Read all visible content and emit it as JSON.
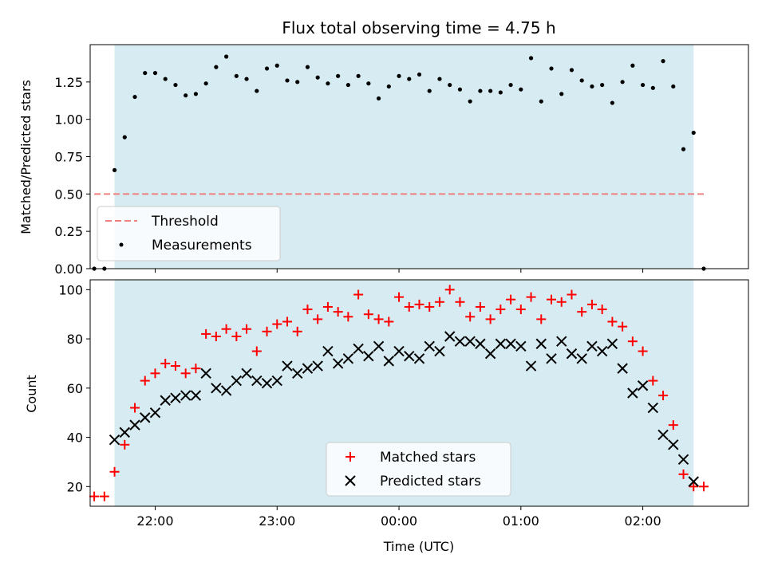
{
  "chart_data": [
    {
      "type": "scatter",
      "title": "Flux total observing time = 4.75 h",
      "xlabel": "",
      "ylabel": "Matched/Predicted stars",
      "xlim": [
        "21:28",
        "02:52"
      ],
      "ylim": [
        0,
        1.5
      ],
      "x_ticks": [
        "22:00",
        "23:00",
        "00:00",
        "01:00",
        "02:00"
      ],
      "y_ticks": [
        "0.00",
        "0.25",
        "0.50",
        "0.75",
        "1.00",
        "1.25"
      ],
      "observing_window": [
        "21:40",
        "02:25"
      ],
      "legend": {
        "position": "lower-left",
        "entries": [
          "Threshold",
          "Measurements"
        ]
      },
      "threshold": {
        "name": "Threshold",
        "value": 0.5,
        "x_range": [
          "21:30",
          "02:30"
        ],
        "color": "#f08080"
      },
      "series": [
        {
          "name": "Measurements",
          "color": "#000000",
          "points": [
            [
              "21:30",
              0.0
            ],
            [
              "21:35",
              0.0
            ],
            [
              "21:40",
              0.66
            ],
            [
              "21:45",
              0.88
            ],
            [
              "21:50",
              1.15
            ],
            [
              "21:55",
              1.31
            ],
            [
              "22:00",
              1.31
            ],
            [
              "22:05",
              1.27
            ],
            [
              "22:10",
              1.23
            ],
            [
              "22:15",
              1.16
            ],
            [
              "22:20",
              1.17
            ],
            [
              "22:25",
              1.24
            ],
            [
              "22:30",
              1.35
            ],
            [
              "22:35",
              1.42
            ],
            [
              "22:40",
              1.29
            ],
            [
              "22:45",
              1.27
            ],
            [
              "22:50",
              1.19
            ],
            [
              "22:55",
              1.34
            ],
            [
              "23:00",
              1.36
            ],
            [
              "23:05",
              1.26
            ],
            [
              "23:10",
              1.25
            ],
            [
              "23:15",
              1.35
            ],
            [
              "23:20",
              1.28
            ],
            [
              "23:25",
              1.24
            ],
            [
              "23:30",
              1.29
            ],
            [
              "23:35",
              1.23
            ],
            [
              "23:40",
              1.29
            ],
            [
              "23:45",
              1.24
            ],
            [
              "23:50",
              1.14
            ],
            [
              "23:55",
              1.22
            ],
            [
              "00:00",
              1.29
            ],
            [
              "00:05",
              1.27
            ],
            [
              "00:10",
              1.3
            ],
            [
              "00:15",
              1.19
            ],
            [
              "00:20",
              1.27
            ],
            [
              "00:25",
              1.23
            ],
            [
              "00:30",
              1.2
            ],
            [
              "00:35",
              1.12
            ],
            [
              "00:40",
              1.19
            ],
            [
              "00:45",
              1.19
            ],
            [
              "00:50",
              1.18
            ],
            [
              "00:55",
              1.23
            ],
            [
              "01:00",
              1.2
            ],
            [
              "01:05",
              1.41
            ],
            [
              "01:10",
              1.12
            ],
            [
              "01:15",
              1.34
            ],
            [
              "01:20",
              1.17
            ],
            [
              "01:25",
              1.33
            ],
            [
              "01:30",
              1.26
            ],
            [
              "01:35",
              1.22
            ],
            [
              "01:40",
              1.23
            ],
            [
              "01:45",
              1.11
            ],
            [
              "01:50",
              1.25
            ],
            [
              "01:55",
              1.36
            ],
            [
              "02:00",
              1.23
            ],
            [
              "02:05",
              1.21
            ],
            [
              "02:10",
              1.39
            ],
            [
              "02:15",
              1.22
            ],
            [
              "02:20",
              0.8
            ],
            [
              "02:25",
              0.91
            ],
            [
              "02:30",
              0.0
            ]
          ]
        }
      ]
    },
    {
      "type": "scatter",
      "title": "",
      "xlabel": "Time (UTC)",
      "ylabel": "Count",
      "xlim": [
        "21:28",
        "02:52"
      ],
      "ylim": [
        12,
        104
      ],
      "x_ticks": [
        "22:00",
        "23:00",
        "00:00",
        "01:00",
        "02:00"
      ],
      "y_ticks": [
        "20",
        "40",
        "60",
        "80",
        "100"
      ],
      "observing_window": [
        "21:40",
        "02:25"
      ],
      "legend": {
        "position": "lower-center",
        "entries": [
          "Matched stars",
          "Predicted stars"
        ]
      },
      "series": [
        {
          "name": "Matched stars",
          "marker": "plus",
          "color": "#ff0000",
          "points": [
            [
              "21:30",
              16
            ],
            [
              "21:35",
              16
            ],
            [
              "21:40",
              26
            ],
            [
              "21:45",
              37
            ],
            [
              "21:50",
              52
            ],
            [
              "21:55",
              63
            ],
            [
              "22:00",
              66
            ],
            [
              "22:05",
              70
            ],
            [
              "22:10",
              69
            ],
            [
              "22:15",
              66
            ],
            [
              "22:20",
              68
            ],
            [
              "22:25",
              82
            ],
            [
              "22:30",
              81
            ],
            [
              "22:35",
              84
            ],
            [
              "22:40",
              81
            ],
            [
              "22:45",
              84
            ],
            [
              "22:50",
              75
            ],
            [
              "22:55",
              83
            ],
            [
              "23:00",
              86
            ],
            [
              "23:05",
              87
            ],
            [
              "23:10",
              83
            ],
            [
              "23:15",
              92
            ],
            [
              "23:20",
              88
            ],
            [
              "23:25",
              93
            ],
            [
              "23:30",
              91
            ],
            [
              "23:35",
              89
            ],
            [
              "23:40",
              98
            ],
            [
              "23:45",
              90
            ],
            [
              "23:50",
              88
            ],
            [
              "23:55",
              87
            ],
            [
              "00:00",
              97
            ],
            [
              "00:05",
              93
            ],
            [
              "00:10",
              94
            ],
            [
              "00:15",
              93
            ],
            [
              "00:20",
              95
            ],
            [
              "00:25",
              100
            ],
            [
              "00:30",
              95
            ],
            [
              "00:35",
              89
            ],
            [
              "00:40",
              93
            ],
            [
              "00:45",
              88
            ],
            [
              "00:50",
              92
            ],
            [
              "00:55",
              96
            ],
            [
              "01:00",
              92
            ],
            [
              "01:05",
              97
            ],
            [
              "01:10",
              88
            ],
            [
              "01:15",
              96
            ],
            [
              "01:20",
              95
            ],
            [
              "01:25",
              98
            ],
            [
              "01:30",
              91
            ],
            [
              "01:35",
              94
            ],
            [
              "01:40",
              92
            ],
            [
              "01:45",
              87
            ],
            [
              "01:50",
              85
            ],
            [
              "01:55",
              79
            ],
            [
              "02:00",
              75
            ],
            [
              "02:05",
              63
            ],
            [
              "02:10",
              57
            ],
            [
              "02:15",
              45
            ],
            [
              "02:20",
              25
            ],
            [
              "02:25",
              20
            ],
            [
              "02:30",
              20
            ]
          ]
        },
        {
          "name": "Predicted stars",
          "marker": "x",
          "color": "#000000",
          "points": [
            [
              "21:40",
              39
            ],
            [
              "21:45",
              42
            ],
            [
              "21:50",
              45
            ],
            [
              "21:55",
              48
            ],
            [
              "22:00",
              50
            ],
            [
              "22:05",
              55
            ],
            [
              "22:10",
              56
            ],
            [
              "22:15",
              57
            ],
            [
              "22:20",
              57
            ],
            [
              "22:25",
              66
            ],
            [
              "22:30",
              60
            ],
            [
              "22:35",
              59
            ],
            [
              "22:40",
              63
            ],
            [
              "22:45",
              66
            ],
            [
              "22:50",
              63
            ],
            [
              "22:55",
              62
            ],
            [
              "23:00",
              63
            ],
            [
              "23:05",
              69
            ],
            [
              "23:10",
              66
            ],
            [
              "23:15",
              68
            ],
            [
              "23:20",
              69
            ],
            [
              "23:25",
              75
            ],
            [
              "23:30",
              70
            ],
            [
              "23:35",
              72
            ],
            [
              "23:40",
              76
            ],
            [
              "23:45",
              73
            ],
            [
              "23:50",
              77
            ],
            [
              "23:55",
              71
            ],
            [
              "00:00",
              75
            ],
            [
              "00:05",
              73
            ],
            [
              "00:10",
              72
            ],
            [
              "00:15",
              77
            ],
            [
              "00:20",
              75
            ],
            [
              "00:25",
              81
            ],
            [
              "00:30",
              79
            ],
            [
              "00:35",
              79
            ],
            [
              "00:40",
              78
            ],
            [
              "00:45",
              74
            ],
            [
              "00:50",
              78
            ],
            [
              "00:55",
              78
            ],
            [
              "01:00",
              77
            ],
            [
              "01:05",
              69
            ],
            [
              "01:10",
              78
            ],
            [
              "01:15",
              72
            ],
            [
              "01:20",
              79
            ],
            [
              "01:25",
              74
            ],
            [
              "01:30",
              72
            ],
            [
              "01:35",
              77
            ],
            [
              "01:40",
              75
            ],
            [
              "01:45",
              78
            ],
            [
              "01:50",
              68
            ],
            [
              "01:55",
              58
            ],
            [
              "02:00",
              61
            ],
            [
              "02:05",
              52
            ],
            [
              "02:10",
              41
            ],
            [
              "02:15",
              37
            ],
            [
              "02:20",
              31
            ],
            [
              "02:25",
              22
            ]
          ]
        }
      ]
    }
  ]
}
